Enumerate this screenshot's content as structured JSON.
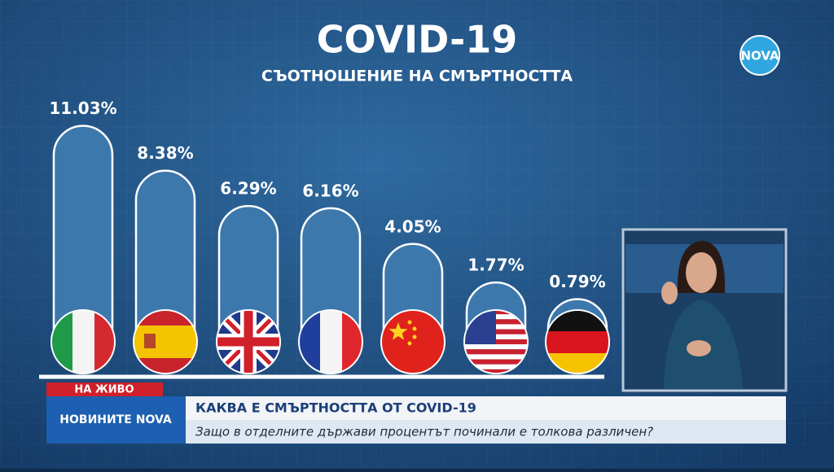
{
  "chart_data": {
    "type": "bar",
    "title": "COVID-19",
    "subtitle": "СЪОТНОШЕНИЕ НА СМЪРТНОСТТА",
    "values": [
      11.03,
      8.38,
      6.29,
      6.16,
      4.05,
      1.77,
      0.79
    ],
    "value_labels": [
      "11.03%",
      "8.38%",
      "6.29%",
      "6.16%",
      "4.05%",
      "1.77%",
      "0.79%"
    ],
    "color": "#3d78ad"
  },
  "logo": "NOVA",
  "ticker": {
    "live": "НА ЖИВО",
    "show": "НОВИНИТЕ NOVA",
    "headline": "КАКВА Е СМЪРТНОСТТА ОТ COVID-19",
    "subheadline": "Защо в отделните държави процентът починали е толкова различен?"
  }
}
